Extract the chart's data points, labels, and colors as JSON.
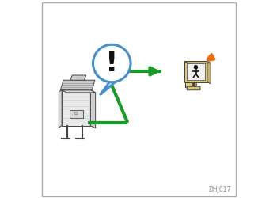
{
  "bg_color": "#ffffff",
  "border_color": "#aaaaaa",
  "arrow_color": "#1a9a2a",
  "bubble_color": "#4a90c8",
  "bubble_fill": "#ffffff",
  "exclaim_color": "#111111",
  "printer_body": "#e8e8e8",
  "printer_outline": "#444444",
  "monitor_body": "#d8c882",
  "monitor_screen_bg": "#e8dfa0",
  "monitor_outline": "#444444",
  "alert_color": "#e87010",
  "caption": "DHJ017",
  "caption_color": "#888888",
  "caption_fontsize": 5.5,
  "arrow_lw": 3.0,
  "figsize": [
    3.5,
    2.5
  ],
  "dpi": 100
}
